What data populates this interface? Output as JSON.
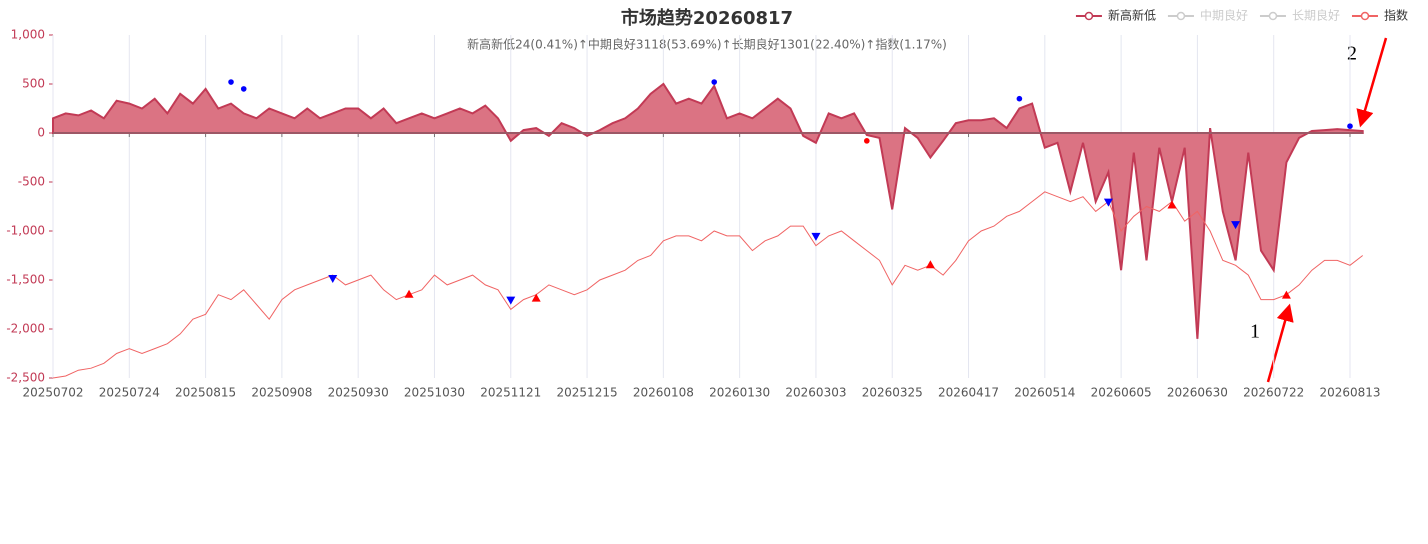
{
  "chart_data": {
    "type": "area-line",
    "title": "市场趋势20260817",
    "subtitle": "新高新低24(0.41%)↑中期良好3118(53.69%)↑长期良好1301(22.40%)↑指数(1.17%)",
    "categories": [
      "20250702",
      null,
      null,
      null,
      null,
      null,
      "20250724",
      null,
      null,
      null,
      null,
      null,
      "20250815",
      null,
      null,
      null,
      null,
      null,
      "20250908",
      null,
      null,
      null,
      null,
      null,
      "20250930",
      null,
      null,
      null,
      null,
      null,
      "20251030",
      null,
      null,
      null,
      null,
      null,
      "20251121",
      null,
      null,
      null,
      null,
      null,
      "20251215",
      null,
      null,
      null,
      null,
      null,
      "20260108",
      null,
      null,
      null,
      null,
      null,
      "20260130",
      null,
      null,
      null,
      null,
      null,
      "20260303",
      null,
      null,
      null,
      null,
      null,
      "20260325",
      null,
      null,
      null,
      null,
      null,
      "20260417",
      null,
      null,
      null,
      null,
      null,
      "20260514",
      null,
      null,
      null,
      null,
      null,
      "20260605",
      null,
      null,
      null,
      null,
      null,
      "20260630",
      null,
      null,
      null,
      null,
      null,
      "20260722",
      null,
      null,
      null,
      null,
      null,
      "20260813",
      null
    ],
    "ylim": [
      -2500,
      1000
    ],
    "yticks": [
      {
        "value": 1000,
        "label": "1,000"
      },
      500,
      0,
      -500,
      {
        "value": -1000,
        "label": "-1,000"
      },
      {
        "value": -1500,
        "label": "-1,500"
      },
      {
        "value": -2000,
        "label": "-2,000"
      },
      {
        "value": -2500,
        "label": "-2,500"
      }
    ],
    "grid": true,
    "legend": "top-right",
    "series": [
      {
        "name": "新高新低",
        "type": "area",
        "color": "#c23a55",
        "fill": "#db7383",
        "values": [
          150,
          200,
          180,
          230,
          150,
          330,
          300,
          250,
          350,
          200,
          400,
          300,
          450,
          250,
          300,
          200,
          150,
          250,
          200,
          150,
          250,
          150,
          200,
          250,
          250,
          150,
          250,
          100,
          150,
          200,
          150,
          200,
          250,
          200,
          280,
          150,
          -80,
          30,
          50,
          -30,
          100,
          50,
          -30,
          30,
          100,
          150,
          250,
          400,
          500,
          300,
          350,
          300,
          480,
          150,
          200,
          150,
          250,
          350,
          250,
          -30,
          -100,
          200,
          150,
          200,
          -20,
          -50,
          -780,
          50,
          -50,
          -250,
          -80,
          100,
          130,
          130,
          150,
          50,
          250,
          300,
          -150,
          -100,
          -600,
          -100,
          -700,
          -400,
          -1400,
          -200,
          -1300,
          -150,
          -700,
          -150,
          -2100,
          50,
          -800,
          -1300,
          -200,
          -1200,
          -1400,
          -300,
          -50,
          20,
          30,
          40,
          30,
          20
        ],
        "high_points": {
          "color": "#0000ff",
          "x_index": [
            14,
            15,
            52,
            76,
            102
          ],
          "values": [
            520,
            450,
            520,
            350,
            70
          ]
        },
        "low_points": {
          "color": "#ff0000",
          "x_index": [
            64
          ],
          "values": [
            -80
          ]
        }
      },
      {
        "name": "中期良好",
        "color": "#cccccc",
        "hidden": true
      },
      {
        "name": "长期良好",
        "color": "#cccccc",
        "hidden": true
      },
      {
        "name": "指数",
        "type": "line",
        "color": "#f06464",
        "values": [
          -2500,
          -2480,
          -2420,
          -2400,
          -2350,
          -2250,
          -2200,
          -2250,
          -2200,
          -2150,
          -2050,
          -1900,
          -1850,
          -1650,
          -1700,
          -1600,
          -1750,
          -1900,
          -1700,
          -1600,
          -1550,
          -1500,
          -1450,
          -1550,
          -1500,
          -1450,
          -1600,
          -1700,
          -1650,
          -1600,
          -1450,
          -1550,
          -1500,
          -1450,
          -1550,
          -1600,
          -1800,
          -1700,
          -1650,
          -1550,
          -1600,
          -1650,
          -1600,
          -1500,
          -1450,
          -1400,
          -1300,
          -1250,
          -1100,
          -1050,
          -1050,
          -1100,
          -1000,
          -1050,
          -1050,
          -1200,
          -1100,
          -1050,
          -950,
          -950,
          -1150,
          -1050,
          -1000,
          -1100,
          -1200,
          -1300,
          -1550,
          -1350,
          -1400,
          -1350,
          -1450,
          -1300,
          -1100,
          -1000,
          -950,
          -850,
          -800,
          -700,
          -600,
          -650,
          -700,
          -650,
          -800,
          -700,
          -1000,
          -850,
          -750,
          -800,
          -700,
          -900,
          -800,
          -1000,
          -1300,
          -1350,
          -1450,
          -1700,
          -1700,
          -1650,
          -1550,
          -1400,
          -1300,
          -1300,
          -1350,
          -1250
        ],
        "down_marks": {
          "color": "#0000ff",
          "x_index": [
            22,
            36,
            60,
            83,
            93
          ],
          "values": [
            -1480,
            -1700,
            -1050,
            -700,
            -930
          ]
        },
        "up_marks": {
          "color": "#ff0000",
          "x_index": [
            28,
            38,
            69,
            88,
            97
          ],
          "values": [
            -1650,
            -1690,
            -1350,
            -740,
            -1660
          ]
        }
      }
    ],
    "annotations": [
      "1",
      "2"
    ]
  }
}
